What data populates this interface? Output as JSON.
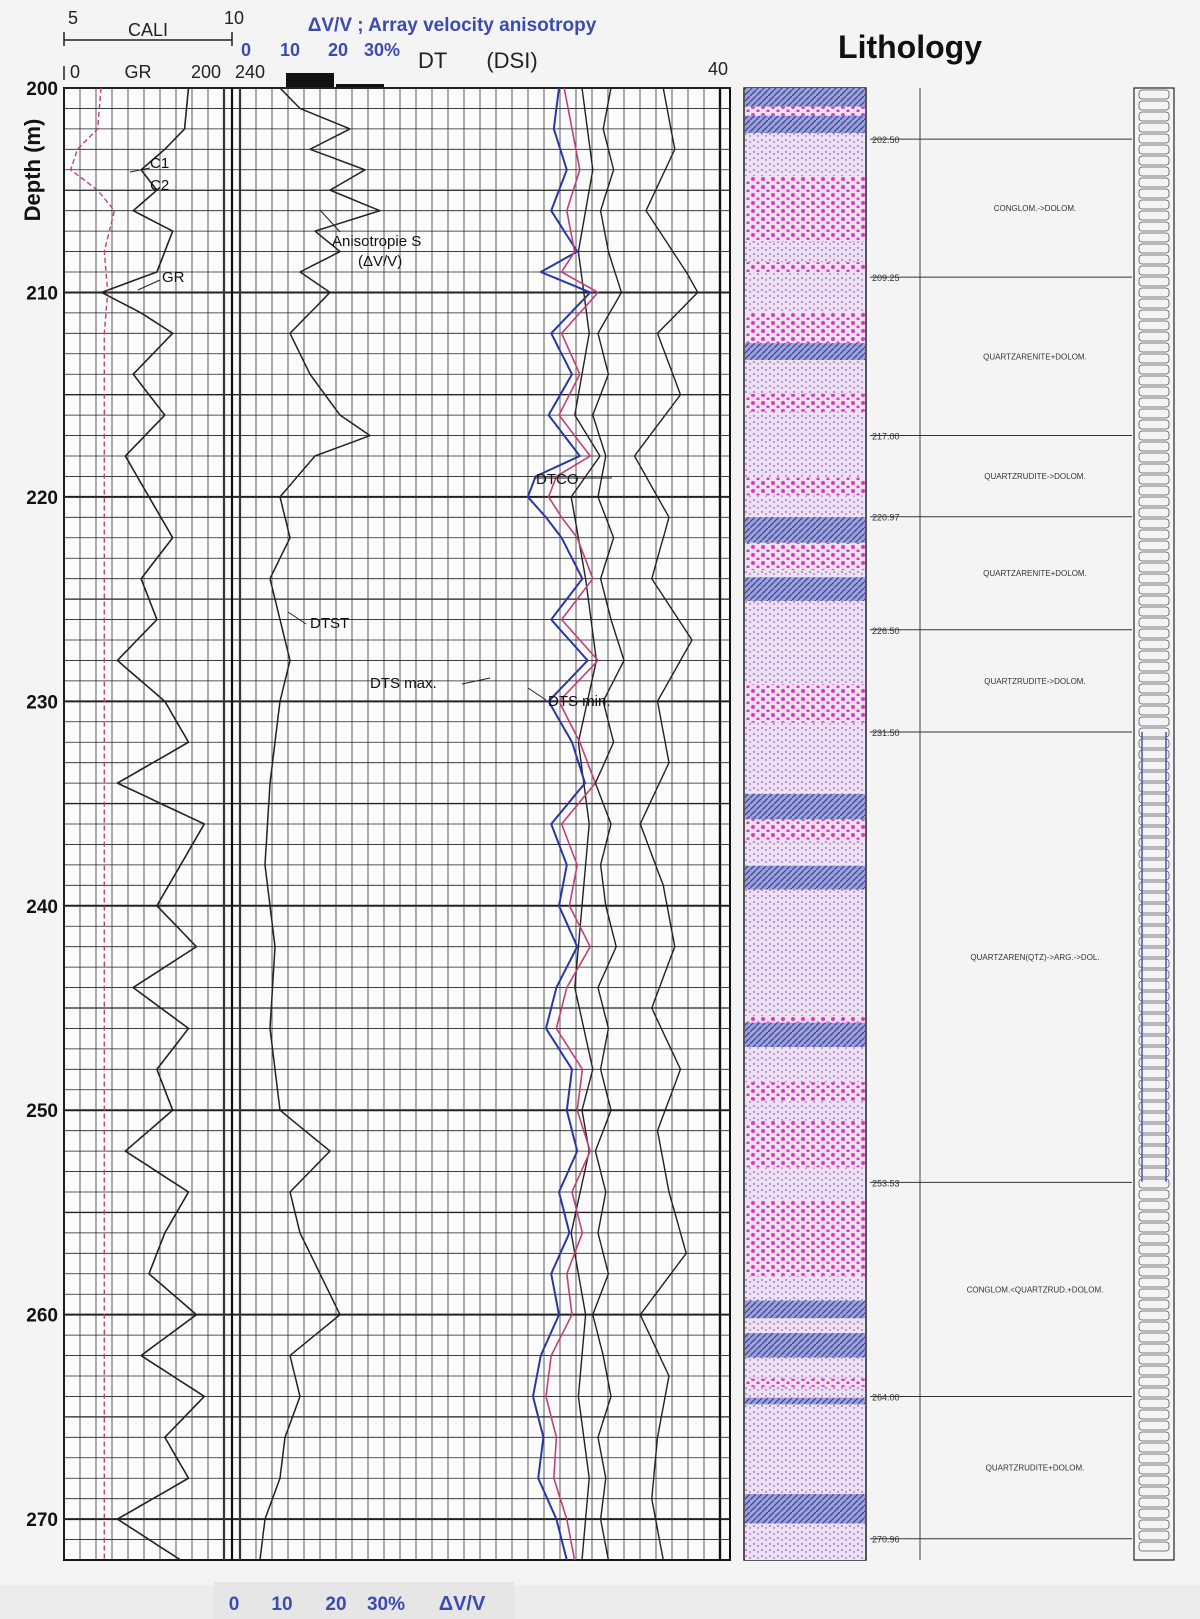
{
  "chart_data": {
    "type": "line",
    "title": "Lithology",
    "ylabel": "Depth (m)",
    "depth_ticks": [
      200,
      210,
      220,
      230,
      240,
      250,
      260,
      270
    ],
    "ylim": [
      200,
      272
    ],
    "tracks": [
      {
        "name": "CALI / GR",
        "scales": [
          {
            "label": "CALI",
            "min": "5",
            "max": "10"
          },
          {
            "label": "GR",
            "min": "0",
            "max": "200"
          }
        ],
        "curve_labels": [
          "C1",
          "C2",
          "GR"
        ],
        "series": [
          {
            "name": "GR",
            "x_range": [
              0,
              200
            ],
            "depth": [
              200,
              202,
              203,
              204,
              205,
              206,
              207,
              208,
              209,
              210,
              211,
              212,
              214,
              216,
              218,
              220,
              222,
              224,
              226,
              228,
              230,
              232,
              234,
              236,
              238,
              240,
              242,
              244,
              246,
              248,
              250,
              252,
              254,
              256,
              258,
              260,
              262,
              264,
              266,
              268,
              270,
              272
            ],
            "values": [
              150,
              145,
              120,
              90,
              110,
              80,
              130,
              120,
              110,
              40,
              90,
              130,
              80,
              120,
              70,
              100,
              130,
              90,
              110,
              60,
              120,
              150,
              60,
              170,
              140,
              110,
              160,
              80,
              150,
              110,
              130,
              70,
              150,
              120,
              100,
              160,
              90,
              170,
              120,
              150,
              60,
              140
            ]
          },
          {
            "name": "C1",
            "x_range": [
              5,
              10
            ],
            "depth": [
              200,
              202,
              203,
              204,
              205,
              206,
              208,
              210,
              212,
              216,
              220,
              230,
              240,
              250,
              260,
              270,
              272
            ],
            "values": [
              6.1,
              6.0,
              5.4,
              5.2,
              6.0,
              6.5,
              6.2,
              6.3,
              6.2,
              6.2,
              6.2,
              6.2,
              6.2,
              6.2,
              6.2,
              6.2,
              6.2
            ]
          }
        ]
      },
      {
        "name": "Array velocity anisotropy",
        "scales": [
          {
            "label": "ΔV/V ; Array velocity anisotropy",
            "ticks": [
              "0",
              "10",
              "20",
              "30%"
            ]
          }
        ],
        "bottom_scale": {
          "ticks": [
            "0",
            "10",
            "20",
            "30%"
          ],
          "unit": "ΔV/V"
        },
        "top_marks": [
          "240"
        ],
        "curve_labels": [
          "Anisotropie S",
          "(ΔV/V)"
        ],
        "series": [
          {
            "name": "Anisotropie S (ΔV/V)",
            "x_range": [
              0,
              30
            ],
            "depth": [
              200,
              201,
              202,
              203,
              204,
              205,
              206,
              207,
              208,
              209,
              210,
              212,
              214,
              216,
              217,
              218,
              220,
              222,
              224,
              226,
              228,
              230,
              234,
              238,
              242,
              246,
              250,
              252,
              254,
              256,
              258,
              260,
              262,
              264,
              266,
              268,
              270,
              272
            ],
            "values": [
              8,
              12,
              22,
              14,
              25,
              18,
              28,
              15,
              20,
              12,
              18,
              10,
              14,
              20,
              26,
              15,
              8,
              10,
              6,
              8,
              10,
              8,
              6,
              5,
              7,
              6,
              8,
              18,
              10,
              12,
              16,
              20,
              10,
              12,
              9,
              8,
              5,
              4
            ]
          }
        ]
      },
      {
        "name": "DT (DSI)",
        "scales": [
          {
            "label": "DT",
            "sublabel": "(DSI)",
            "min": "240",
            "max": "40"
          }
        ],
        "curve_labels": [
          "DTCO",
          "DTST",
          "DTS max.",
          "DTS min."
        ],
        "series": [
          {
            "name": "DTCO",
            "color": "#222222",
            "x_range": [
              240,
              40
            ],
            "depth": [
              200,
              202,
              204,
              206,
              208,
              210,
              212,
              214,
              216,
              218,
              220,
              222,
              224,
              226,
              228,
              230,
              232,
              234,
              236,
              238,
              240,
              242,
              244,
              246,
              248,
              250,
              252,
              254,
              256,
              258,
              260,
              262,
              264,
              266,
              268,
              270,
              272
            ],
            "values": [
              70,
              76,
              68,
              78,
              72,
              62,
              80,
              72,
              84,
              74,
              80,
              68,
              78,
              70,
              60,
              76,
              68,
              82,
              70,
              78,
              74,
              66,
              80,
              72,
              78,
              70,
              82,
              74,
              80,
              72,
              84,
              76,
              70,
              80,
              74,
              78,
              72
            ]
          },
          {
            "name": "DTS max.",
            "color": "#2b36a8",
            "x_range": [
              240,
              40
            ],
            "depth": [
              200,
              202,
              204,
              206,
              208,
              209,
              210,
              212,
              214,
              216,
              218,
              219,
              220,
              221,
              222,
              224,
              226,
              228,
              230,
              232,
              234,
              236,
              238,
              240,
              242,
              244,
              246,
              248,
              250,
              252,
              254,
              256,
              258,
              260,
              262,
              264,
              266,
              268,
              270,
              272
            ],
            "values": [
              110,
              114,
              104,
              116,
              96,
              124,
              86,
              116,
              100,
              118,
              94,
              128,
              134,
              120,
              108,
              92,
              116,
              88,
              118,
              100,
              90,
              116,
              104,
              110,
              96,
              112,
              120,
              100,
              104,
              96,
              110,
              102,
              116,
              110,
              124,
              130,
              122,
              126,
              112,
              104
            ]
          },
          {
            "name": "DTS min.",
            "color": "#c2407a",
            "x_range": [
              240,
              40
            ],
            "depth": [
              200,
              202,
              204,
              206,
              208,
              209,
              210,
              212,
              214,
              216,
              218,
              219,
              220,
              221,
              222,
              224,
              226,
              228,
              230,
              232,
              234,
              236,
              238,
              240,
              242,
              244,
              246,
              248,
              250,
              252,
              254,
              256,
              258,
              260,
              262,
              264,
              266,
              268,
              270,
              272
            ],
            "values": [
              106,
              100,
              94,
              104,
              98,
              108,
              80,
              108,
              94,
              110,
              86,
              112,
              118,
              108,
              96,
              84,
              108,
              80,
              110,
              94,
              82,
              108,
              96,
              102,
              86,
              104,
              112,
              92,
              96,
              86,
              100,
              92,
              104,
              100,
              116,
              120,
              112,
              114,
              104,
              98
            ]
          },
          {
            "name": "DTST",
            "color": "#222222",
            "x_range": [
              240,
              40
            ],
            "depth": [
              200,
              204,
              208,
              212,
              216,
              218,
              220,
              224,
              228,
              232,
              236,
              240,
              244,
              248,
              250,
              252,
              256,
              260,
              264,
              268,
              272
            ],
            "values": [
              50,
              44,
              52,
              46,
              54,
              40,
              56,
              48,
              42,
              52,
              46,
              50,
              54,
              44,
              50,
              46,
              56,
              48,
              52,
              46,
              50
            ]
          }
        ]
      },
      {
        "name": "DT (DSI) right",
        "scales": [
          {
            "label": "",
            "max": "40"
          }
        ],
        "series": [
          {
            "name": "right curve",
            "x_range": [
              0,
              1
            ],
            "depth": [
              200,
              203,
              206,
              209,
              210,
              212,
              215,
              218,
              221,
              224,
              227,
              230,
              233,
              236,
              239,
              242,
              245,
              248,
              251,
              254,
              257,
              260,
              263,
              266,
              269,
              272
            ],
            "values": [
              0.55,
              0.65,
              0.4,
              0.75,
              0.85,
              0.5,
              0.7,
              0.3,
              0.6,
              0.45,
              0.8,
              0.5,
              0.6,
              0.35,
              0.55,
              0.65,
              0.45,
              0.7,
              0.5,
              0.6,
              0.75,
              0.35,
              0.6,
              0.5,
              0.45,
              0.55
            ]
          }
        ]
      }
    ],
    "lithology": {
      "column_header": "Lithology",
      "colors": {
        "pink": "#d23fbf",
        "lilac": "#c8b0e0",
        "blue": "#4a52b8",
        "pale": "#f0e6f4"
      },
      "boundaries": [
        {
          "depth": 202.5,
          "label": "202.50"
        },
        {
          "depth": 209.25,
          "label": "209.25"
        },
        {
          "depth": 217.0,
          "label": "217.00"
        },
        {
          "depth": 220.97,
          "label": "220.97"
        },
        {
          "depth": 226.5,
          "label": "226.50"
        },
        {
          "depth": 231.5,
          "label": "231.50"
        },
        {
          "depth": 253.53,
          "label": "253.53"
        },
        {
          "depth": 264.0,
          "label": "264.00"
        },
        {
          "depth": 270.96,
          "label": "270.96"
        }
      ],
      "units": [
        {
          "top": 202.5,
          "bottom": 209.25,
          "label": "CONGLOM.->DOLOM."
        },
        {
          "top": 209.25,
          "bottom": 217.0,
          "label": "QUARTZARENITE+DOLOM."
        },
        {
          "top": 217.0,
          "bottom": 220.97,
          "label": "QUARTZRUDITE->DOLOM."
        },
        {
          "top": 220.97,
          "bottom": 226.5,
          "label": "QUARTZARENITE+DOLOM."
        },
        {
          "top": 226.5,
          "bottom": 231.5,
          "label": "QUARTZRUDITE->DOLOM."
        },
        {
          "top": 231.5,
          "bottom": 253.53,
          "label": "QUARTZAREN(QTZ)->ARG.->DOL."
        },
        {
          "top": 253.53,
          "bottom": 264.0,
          "label": "CONGLOM.<QUARTZRUD.+DOLOM."
        },
        {
          "top": 264.0,
          "bottom": 270.96,
          "label": "QUARTZRUDITE+DOLOM."
        }
      ]
    }
  }
}
